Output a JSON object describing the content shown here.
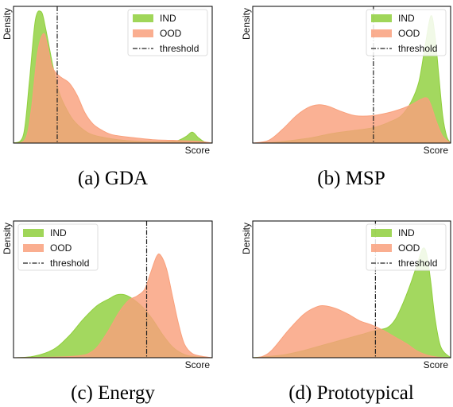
{
  "chart_data": [
    {
      "type": "area",
      "caption": "(a) GDA",
      "ylabel": "Density",
      "xlabel": "Score",
      "legend": "top-right",
      "threshold": 0.22,
      "series": [
        {
          "name": "IND",
          "color": "#8fcf3c",
          "x": [
            0.0,
            0.05,
            0.08,
            0.11,
            0.14,
            0.16,
            0.18,
            0.2,
            0.22,
            0.24,
            0.27,
            0.3,
            0.35,
            0.4,
            0.5,
            0.6,
            0.7,
            0.78,
            0.83,
            0.87,
            0.9,
            0.93,
            0.96,
            1.0
          ],
          "density": [
            0.0,
            0.06,
            0.45,
            0.9,
            0.96,
            0.85,
            0.7,
            0.55,
            0.42,
            0.33,
            0.24,
            0.17,
            0.1,
            0.06,
            0.03,
            0.015,
            0.01,
            0.01,
            0.02,
            0.05,
            0.08,
            0.04,
            0.01,
            0.0
          ]
        },
        {
          "name": "OOD",
          "color": "#f9a07c",
          "x": [
            0.0,
            0.06,
            0.09,
            0.12,
            0.15,
            0.17,
            0.19,
            0.21,
            0.24,
            0.28,
            0.32,
            0.36,
            0.4,
            0.45,
            0.5,
            0.6,
            0.7,
            0.8,
            0.9,
            0.95,
            1.0
          ],
          "density": [
            0.0,
            0.03,
            0.25,
            0.65,
            0.8,
            0.72,
            0.58,
            0.52,
            0.48,
            0.44,
            0.35,
            0.22,
            0.14,
            0.09,
            0.06,
            0.04,
            0.025,
            0.02,
            0.015,
            0.01,
            0.0
          ]
        }
      ]
    },
    {
      "type": "area",
      "caption": "(b) MSP",
      "ylabel": "Density",
      "xlabel": "Score",
      "legend": "top-right",
      "threshold": 0.61,
      "series": [
        {
          "name": "IND",
          "color": "#8fcf3c",
          "x": [
            0.0,
            0.1,
            0.2,
            0.3,
            0.4,
            0.5,
            0.6,
            0.65,
            0.7,
            0.75,
            0.8,
            0.84,
            0.87,
            0.9,
            0.92,
            0.94,
            0.96,
            0.98,
            1.0
          ],
          "density": [
            0.0,
            0.005,
            0.02,
            0.04,
            0.07,
            0.09,
            0.11,
            0.13,
            0.16,
            0.2,
            0.3,
            0.45,
            0.7,
            0.93,
            0.8,
            0.5,
            0.2,
            0.05,
            0.0
          ]
        },
        {
          "name": "OOD",
          "color": "#f9a07c",
          "x": [
            0.0,
            0.08,
            0.15,
            0.22,
            0.28,
            0.33,
            0.38,
            0.45,
            0.52,
            0.6,
            0.68,
            0.75,
            0.8,
            0.85,
            0.88,
            0.9,
            0.93,
            0.96,
            1.0
          ],
          "density": [
            0.0,
            0.02,
            0.1,
            0.2,
            0.26,
            0.28,
            0.27,
            0.23,
            0.2,
            0.2,
            0.22,
            0.25,
            0.28,
            0.32,
            0.33,
            0.28,
            0.15,
            0.05,
            0.0
          ]
        }
      ]
    },
    {
      "type": "area",
      "caption": "(c) Energy",
      "ylabel": "Density",
      "xlabel": "Score",
      "legend": "top-left",
      "threshold": 0.67,
      "series": [
        {
          "name": "IND",
          "color": "#8fcf3c",
          "x": [
            0.0,
            0.1,
            0.2,
            0.28,
            0.35,
            0.42,
            0.48,
            0.52,
            0.56,
            0.6,
            0.65,
            0.7,
            0.75,
            0.8,
            0.85,
            0.9,
            1.0
          ],
          "density": [
            0.0,
            0.01,
            0.06,
            0.16,
            0.28,
            0.38,
            0.43,
            0.46,
            0.46,
            0.43,
            0.37,
            0.28,
            0.17,
            0.08,
            0.03,
            0.01,
            0.0
          ]
        },
        {
          "name": "OOD",
          "color": "#f9a07c",
          "x": [
            0.0,
            0.3,
            0.4,
            0.47,
            0.53,
            0.58,
            0.62,
            0.66,
            0.69,
            0.72,
            0.74,
            0.77,
            0.8,
            0.83,
            0.86,
            0.9,
            0.95,
            1.0
          ],
          "density": [
            0.0,
            0.01,
            0.05,
            0.18,
            0.33,
            0.42,
            0.45,
            0.5,
            0.62,
            0.74,
            0.75,
            0.65,
            0.45,
            0.25,
            0.1,
            0.03,
            0.01,
            0.0
          ]
        }
      ]
    },
    {
      "type": "area",
      "caption": "(d) Prototypical",
      "ylabel": "Density",
      "xlabel": "Score",
      "legend": "top-right",
      "threshold": 0.62,
      "series": [
        {
          "name": "IND",
          "color": "#8fcf3c",
          "x": [
            0.0,
            0.15,
            0.25,
            0.35,
            0.45,
            0.55,
            0.62,
            0.68,
            0.72,
            0.76,
            0.8,
            0.83,
            0.86,
            0.88,
            0.9,
            0.92,
            0.95,
            1.0
          ],
          "density": [
            0.0,
            0.02,
            0.05,
            0.09,
            0.13,
            0.17,
            0.2,
            0.22,
            0.28,
            0.4,
            0.55,
            0.68,
            0.8,
            0.75,
            0.55,
            0.3,
            0.08,
            0.0
          ]
        },
        {
          "name": "OOD",
          "color": "#f9a07c",
          "x": [
            0.0,
            0.05,
            0.1,
            0.18,
            0.26,
            0.32,
            0.36,
            0.42,
            0.48,
            0.54,
            0.6,
            0.66,
            0.72,
            0.78,
            0.83,
            0.88,
            0.93,
            1.0
          ],
          "density": [
            0.0,
            0.01,
            0.06,
            0.2,
            0.32,
            0.37,
            0.38,
            0.36,
            0.32,
            0.27,
            0.24,
            0.2,
            0.15,
            0.1,
            0.05,
            0.02,
            0.005,
            0.0
          ]
        }
      ]
    }
  ],
  "legend_labels": {
    "ind": "IND",
    "ood": "OOD",
    "threshold": "threshold"
  }
}
